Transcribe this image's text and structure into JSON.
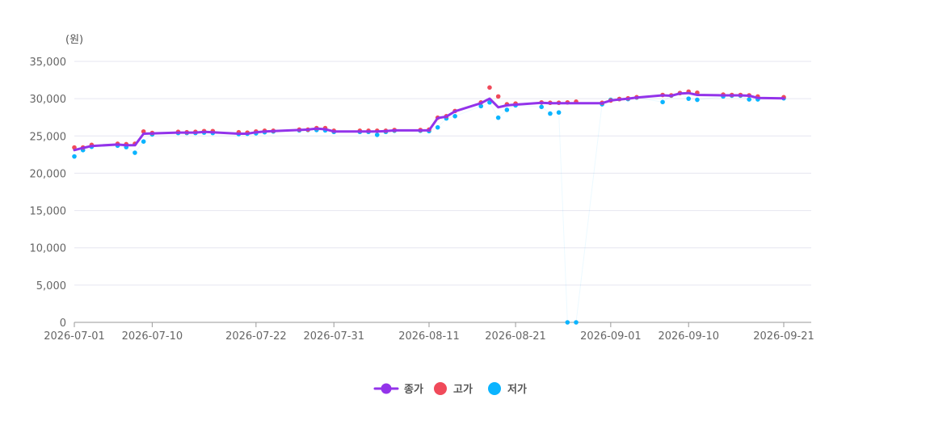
{
  "chart_data": {
    "type": "line",
    "y_unit": "(원)",
    "ylim": [
      0,
      35000
    ],
    "y_ticks": [
      "0",
      "5,000",
      "10,000",
      "15,000",
      "20,000",
      "25,000",
      "30,000",
      "35,000"
    ],
    "y_tick_values": [
      0,
      5000,
      10000,
      15000,
      20000,
      25000,
      30000,
      35000
    ],
    "x_ticks": [
      "2026-07-01",
      "2026-07-10",
      "2026-07-22",
      "2026-07-31",
      "2026-08-11",
      "2026-08-21",
      "2026-09-01",
      "2026-09-10",
      "2026-09-21"
    ],
    "grid": true,
    "legend_position": "bottom-center",
    "colors": {
      "close": "#9333ea",
      "high": "#f04a5a",
      "low": "#0ab4ff",
      "grid": "#e6e6f0",
      "axis": "#999999"
    },
    "x": [
      "2026-07-01",
      "2026-07-02",
      "2026-07-03",
      "2026-07-06",
      "2026-07-07",
      "2026-07-08",
      "2026-07-09",
      "2026-07-10",
      "2026-07-13",
      "2026-07-14",
      "2026-07-15",
      "2026-07-16",
      "2026-07-17",
      "2026-07-20",
      "2026-07-21",
      "2026-07-22",
      "2026-07-23",
      "2026-07-24",
      "2026-07-27",
      "2026-07-28",
      "2026-07-29",
      "2026-07-30",
      "2026-07-31",
      "2026-08-03",
      "2026-08-04",
      "2026-08-05",
      "2026-08-06",
      "2026-08-07",
      "2026-08-10",
      "2026-08-11",
      "2026-08-12",
      "2026-08-13",
      "2026-08-14",
      "2026-08-17",
      "2026-08-18",
      "2026-08-19",
      "2026-08-20",
      "2026-08-21",
      "2026-08-24",
      "2026-08-25",
      "2026-08-26",
      "2026-08-27",
      "2026-08-28",
      "2026-08-31",
      "2026-09-01",
      "2026-09-02",
      "2026-09-03",
      "2026-09-04",
      "2026-09-07",
      "2026-09-08",
      "2026-09-09",
      "2026-09-10",
      "2026-09-11",
      "2026-09-14",
      "2026-09-15",
      "2026-09-16",
      "2026-09-17",
      "2026-09-18",
      "2026-09-21"
    ],
    "series": [
      {
        "name": "종가",
        "values": [
          23100,
          23400,
          23650,
          23850,
          23750,
          23750,
          25300,
          25350,
          25450,
          25450,
          25450,
          25550,
          25500,
          25300,
          25300,
          25500,
          25600,
          25650,
          25800,
          25850,
          26000,
          25900,
          25600,
          25600,
          25600,
          25600,
          25650,
          25750,
          25750,
          25750,
          27400,
          27600,
          28300,
          29400,
          30000,
          28850,
          29100,
          29200,
          29450,
          29400,
          29400,
          29400,
          29400,
          29400,
          29750,
          29900,
          30000,
          30150,
          30450,
          30400,
          30700,
          30750,
          30500,
          30450,
          30450,
          30450,
          30400,
          30100,
          30050
        ]
      },
      {
        "name": "고가",
        "values": [
          23450,
          23450,
          23800,
          23950,
          23900,
          23950,
          25600,
          25400,
          25550,
          25500,
          25550,
          25650,
          25650,
          25500,
          25450,
          25600,
          25700,
          25700,
          25850,
          25850,
          26050,
          26050,
          25700,
          25700,
          25700,
          25700,
          25700,
          25800,
          25800,
          25850,
          27450,
          27650,
          28350,
          29500,
          31500,
          30300,
          29250,
          29350,
          29500,
          29450,
          29450,
          29500,
          29600,
          29450,
          29750,
          29950,
          30050,
          30200,
          30500,
          30450,
          30750,
          30950,
          30800,
          30550,
          30500,
          30500,
          30450,
          30300,
          30200
        ]
      },
      {
        "name": "저가",
        "values": [
          22250,
          23100,
          23550,
          23700,
          23500,
          22750,
          24250,
          25200,
          25400,
          25400,
          25400,
          25450,
          25400,
          25250,
          25300,
          25350,
          25500,
          25600,
          25750,
          25800,
          25800,
          25750,
          25550,
          25550,
          25550,
          25150,
          25550,
          25700,
          25700,
          25650,
          26150,
          27350,
          27650,
          29000,
          29500,
          27450,
          28500,
          29100,
          28900,
          28000,
          28150,
          0,
          0,
          29250,
          29850,
          29950,
          29950,
          30150,
          29550,
          30400,
          30750,
          30000,
          29850,
          30300,
          30400,
          30400,
          29900,
          29900,
          30050
        ]
      }
    ]
  }
}
